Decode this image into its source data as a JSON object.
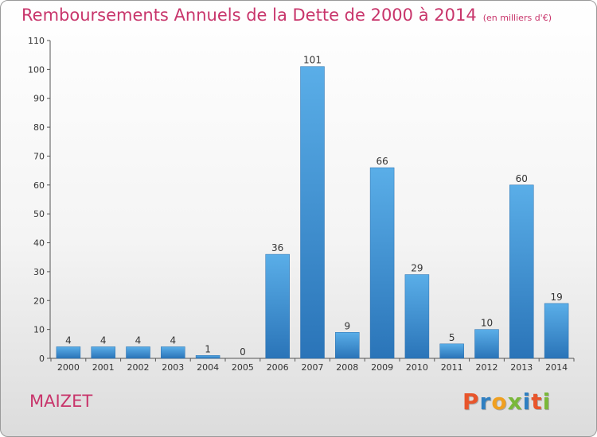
{
  "header": {
    "title": "Remboursements Annuels de la Dette de 2000 à 2014",
    "unit": "(en milliers d'€)"
  },
  "footer": {
    "commune": "MAIZET",
    "logo_letters": [
      "P",
      "r",
      "o",
      "x",
      "i",
      "t",
      "i"
    ],
    "logo_colors": [
      "#e8552b",
      "#2f7fc1",
      "#f0a020",
      "#7ab83a",
      "#2f7fc1",
      "#e8552b",
      "#7ab83a"
    ]
  },
  "chart_data": {
    "type": "bar",
    "title": "Remboursements Annuels de la Dette de 2000 à 2014",
    "subtitle": "(en milliers d'€)",
    "categories": [
      "2000",
      "2001",
      "2002",
      "2003",
      "2004",
      "2005",
      "2006",
      "2007",
      "2008",
      "2009",
      "2010",
      "2011",
      "2012",
      "2013",
      "2014"
    ],
    "values": [
      4,
      4,
      4,
      4,
      1,
      0,
      36,
      101,
      9,
      66,
      29,
      5,
      10,
      60,
      19
    ],
    "yticks": [
      0,
      10,
      20,
      30,
      40,
      50,
      60,
      70,
      80,
      90,
      100,
      110
    ],
    "ylim": [
      0,
      110
    ],
    "bar_color": "#3a8fd6",
    "bar_color_top": "#5aaee8",
    "bar_color_bottom": "#2a74b8",
    "grid": false,
    "xlabel": "",
    "ylabel": ""
  }
}
